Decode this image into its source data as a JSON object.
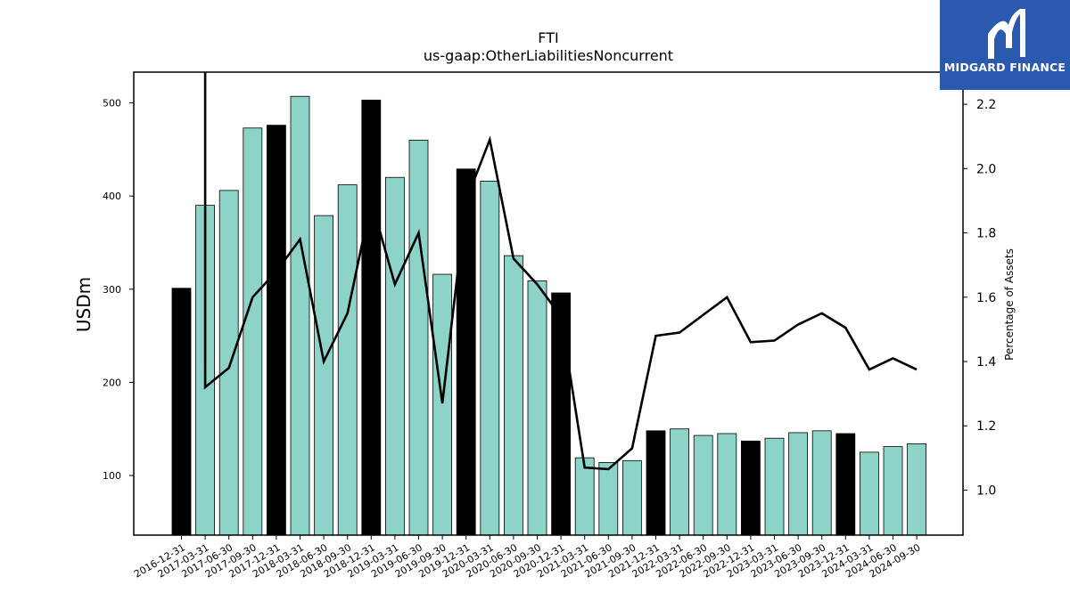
{
  "chart_data": {
    "type": "bar",
    "title": "FTI",
    "subtitle": "us-gaap:OtherLiabilitiesNoncurrent",
    "ylabel": "USDm",
    "y2label": "Percentage of Assets",
    "ylim": [
      36,
      533
    ],
    "y2lim": [
      0.86,
      2.3
    ],
    "yticks": [
      100,
      200,
      300,
      400,
      500
    ],
    "y2ticks": [
      "1.0",
      "1.2",
      "1.4",
      "1.6",
      "1.8",
      "2.0",
      "2.2"
    ],
    "categories": [
      "2016-12-31",
      "2017-03-31",
      "2017-06-30",
      "2017-09-30",
      "2017-12-31",
      "2018-03-31",
      "2018-06-30",
      "2018-09-30",
      "2018-12-31",
      "2019-03-31",
      "2019-06-30",
      "2019-09-30",
      "2019-12-31",
      "2020-03-31",
      "2020-06-30",
      "2020-09-30",
      "2020-12-31",
      "2021-03-31",
      "2021-06-30",
      "2021-09-30",
      "2021-12-31",
      "2022-03-31",
      "2022-06-30",
      "2022-09-30",
      "2022-12-31",
      "2023-03-31",
      "2023-06-30",
      "2023-09-30",
      "2023-12-31",
      "2024-03-31",
      "2024-06-30",
      "2024-09-30"
    ],
    "series": [
      {
        "values": [
          301,
          390,
          406,
          473,
          476,
          507,
          379,
          412,
          503,
          420,
          460,
          316,
          429,
          416,
          336,
          309,
          296,
          119,
          114,
          116,
          148,
          150,
          143,
          145,
          137,
          140,
          146,
          148,
          145,
          125,
          131,
          134
        ],
        "highlight": [
          true,
          false,
          false,
          false,
          true,
          false,
          false,
          false,
          true,
          false,
          false,
          false,
          true,
          false,
          false,
          false,
          true,
          false,
          false,
          false,
          true,
          false,
          false,
          false,
          true,
          false,
          false,
          false,
          true,
          false,
          false,
          false
        ]
      },
      {
        "axis": "right",
        "values": [
          null,
          1.32,
          1.38,
          1.6,
          1.68,
          1.78,
          1.4,
          1.55,
          1.9,
          1.64,
          1.8,
          1.27,
          1.9,
          2.09,
          1.72,
          1.64,
          1.54,
          1.07,
          1.065,
          1.13,
          1.48,
          1.49,
          1.545,
          1.6,
          1.46,
          1.465,
          1.515,
          1.55,
          1.505,
          1.375,
          1.41,
          1.375
        ],
        "first_value_off_scale": true
      }
    ],
    "colors": {
      "bar": "#8dd3c7",
      "bar_highlight": "#000000",
      "line": "#000000"
    }
  },
  "logo": {
    "text": "MIDGARD FINANCE",
    "background": "#2b59b0"
  }
}
